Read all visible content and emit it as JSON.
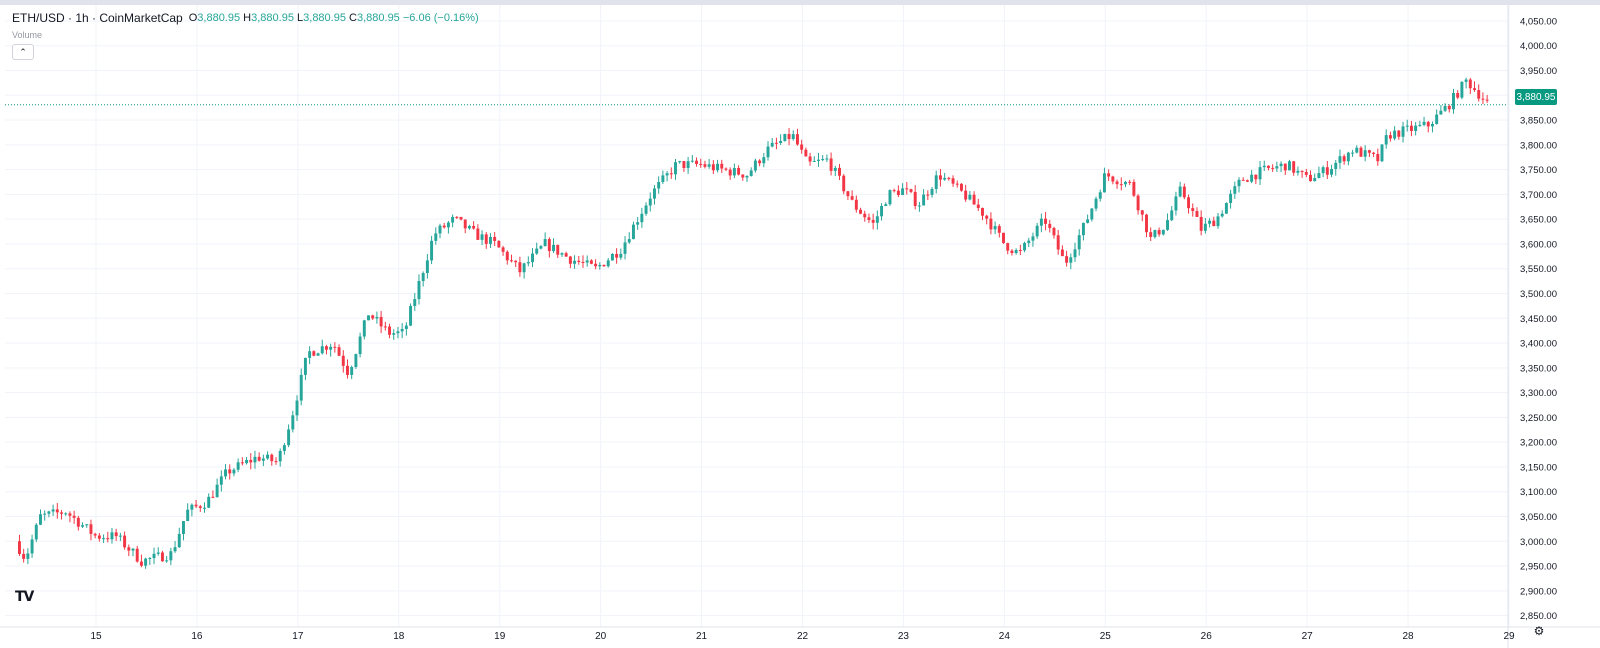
{
  "legend": {
    "symbol": "ETH/USD · 1h · CoinMarketCap",
    "o_label": "O",
    "o": "3,880.95",
    "h_label": "H",
    "h": "3,880.95",
    "l_label": "L",
    "l": "3,880.95",
    "c_label": "C",
    "c": "3,880.95",
    "change": "−6.06 (−0.16%)"
  },
  "volume_label": "Volume",
  "collapse_icon": "chevron-up-icon",
  "logo": "TV",
  "settings_icon": "gear-icon",
  "colors": {
    "up": "#26a69a",
    "down": "#f23645",
    "grid": "#f0f3fa",
    "price_line": "#089981"
  },
  "chart_data": {
    "type": "candlestick",
    "title": "ETH/USD · 1h · CoinMarketCap",
    "ylim": [
      2825,
      4060
    ],
    "y_ticks": [
      2850,
      2900,
      2950,
      3000,
      3050,
      3100,
      3150,
      3200,
      3250,
      3300,
      3350,
      3400,
      3450,
      3500,
      3550,
      3600,
      3650,
      3700,
      3750,
      3800,
      3850,
      3900,
      3950,
      4000,
      4050
    ],
    "y_tick_labels": [
      "2,850.00",
      "2,900.00",
      "2,950.00",
      "3,000.00",
      "3,050.00",
      "3,100.00",
      "3,150.00",
      "3,200.00",
      "3,250.00",
      "3,300.00",
      "3,350.00",
      "3,400.00",
      "3,450.00",
      "3,500.00",
      "3,550.00",
      "3,600.00",
      "3,650.00",
      "3,700.00",
      "3,750.00",
      "3,800.00",
      "3,850.00",
      "3,900.00",
      "3,950.00",
      "4,000.00",
      "4,050.00"
    ],
    "x_tick_labels": [
      "15",
      "16",
      "17",
      "18",
      "19",
      "20",
      "21",
      "22",
      "23",
      "24",
      "25",
      "26",
      "27",
      "28",
      "29"
    ],
    "last_price": 3880.95,
    "last_price_label": "3,880.95",
    "close_path": [
      {
        "day": 14.2,
        "close": 3000
      },
      {
        "day": 14.3,
        "close": 2965
      },
      {
        "day": 14.45,
        "close": 3050
      },
      {
        "day": 14.7,
        "close": 3060
      },
      {
        "day": 15.0,
        "close": 3010
      },
      {
        "day": 15.2,
        "close": 3010
      },
      {
        "day": 15.45,
        "close": 2960
      },
      {
        "day": 15.75,
        "close": 2975
      },
      {
        "day": 15.9,
        "close": 3060
      },
      {
        "day": 16.1,
        "close": 3080
      },
      {
        "day": 16.3,
        "close": 3140
      },
      {
        "day": 16.6,
        "close": 3170
      },
      {
        "day": 16.8,
        "close": 3160
      },
      {
        "day": 16.95,
        "close": 3260
      },
      {
        "day": 17.1,
        "close": 3380
      },
      {
        "day": 17.35,
        "close": 3400
      },
      {
        "day": 17.5,
        "close": 3340
      },
      {
        "day": 17.7,
        "close": 3460
      },
      {
        "day": 17.9,
        "close": 3420
      },
      {
        "day": 18.05,
        "close": 3420
      },
      {
        "day": 18.35,
        "close": 3620
      },
      {
        "day": 18.55,
        "close": 3650
      },
      {
        "day": 18.75,
        "close": 3620
      },
      {
        "day": 18.95,
        "close": 3600
      },
      {
        "day": 19.2,
        "close": 3545
      },
      {
        "day": 19.45,
        "close": 3600
      },
      {
        "day": 19.7,
        "close": 3570
      },
      {
        "day": 19.95,
        "close": 3550
      },
      {
        "day": 20.2,
        "close": 3590
      },
      {
        "day": 20.5,
        "close": 3700
      },
      {
        "day": 20.75,
        "close": 3760
      },
      {
        "day": 21.0,
        "close": 3760
      },
      {
        "day": 21.2,
        "close": 3750
      },
      {
        "day": 21.45,
        "close": 3740
      },
      {
        "day": 21.65,
        "close": 3790
      },
      {
        "day": 21.9,
        "close": 3820
      },
      {
        "day": 22.05,
        "close": 3760
      },
      {
        "day": 22.25,
        "close": 3770
      },
      {
        "day": 22.5,
        "close": 3680
      },
      {
        "day": 22.7,
        "close": 3640
      },
      {
        "day": 22.85,
        "close": 3700
      },
      {
        "day": 23.0,
        "close": 3710
      },
      {
        "day": 23.15,
        "close": 3680
      },
      {
        "day": 23.35,
        "close": 3740
      },
      {
        "day": 23.6,
        "close": 3700
      },
      {
        "day": 23.8,
        "close": 3660
      },
      {
        "day": 24.0,
        "close": 3600
      },
      {
        "day": 24.15,
        "close": 3580
      },
      {
        "day": 24.4,
        "close": 3650
      },
      {
        "day": 24.6,
        "close": 3560
      },
      {
        "day": 24.8,
        "close": 3640
      },
      {
        "day": 25.0,
        "close": 3740
      },
      {
        "day": 25.25,
        "close": 3720
      },
      {
        "day": 25.45,
        "close": 3610
      },
      {
        "day": 25.6,
        "close": 3640
      },
      {
        "day": 25.75,
        "close": 3710
      },
      {
        "day": 25.95,
        "close": 3630
      },
      {
        "day": 26.1,
        "close": 3650
      },
      {
        "day": 26.35,
        "close": 3730
      },
      {
        "day": 26.6,
        "close": 3750
      },
      {
        "day": 26.8,
        "close": 3760
      },
      {
        "day": 27.0,
        "close": 3730
      },
      {
        "day": 27.2,
        "close": 3750
      },
      {
        "day": 27.45,
        "close": 3790
      },
      {
        "day": 27.7,
        "close": 3770
      },
      {
        "day": 27.8,
        "close": 3820
      },
      {
        "day": 28.0,
        "close": 3830
      },
      {
        "day": 28.2,
        "close": 3840
      },
      {
        "day": 28.4,
        "close": 3880
      },
      {
        "day": 28.58,
        "close": 3930
      },
      {
        "day": 28.8,
        "close": 3881
      }
    ]
  }
}
